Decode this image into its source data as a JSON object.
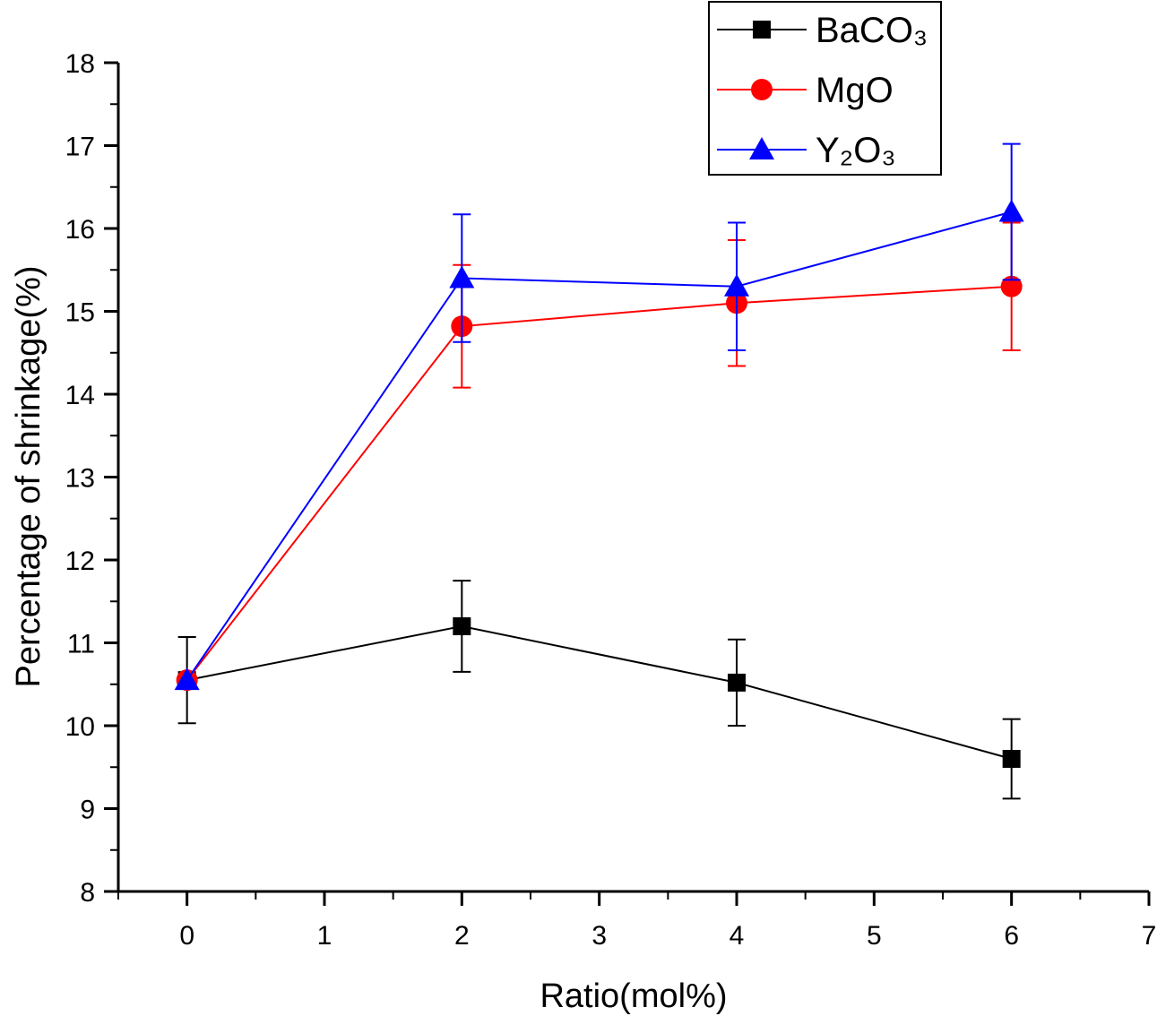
{
  "chart_data": {
    "type": "line",
    "title": "",
    "xlabel": "Ratio(mol%)",
    "ylabel": "Percentage of shrinkage(%)",
    "xlim": [
      -0.5,
      7
    ],
    "ylim": [
      8,
      18
    ],
    "xticks": [
      0,
      1,
      2,
      3,
      4,
      5,
      6,
      7
    ],
    "yticks": [
      8,
      9,
      10,
      11,
      12,
      13,
      14,
      15,
      16,
      17,
      18
    ],
    "grid": false,
    "legend_position": "top-right",
    "x": [
      0,
      2,
      4,
      6
    ],
    "series": [
      {
        "name": "BaCO₃",
        "color": "#000000",
        "marker": "square",
        "values": [
          10.55,
          11.2,
          10.52,
          9.6
        ],
        "errors": [
          0.52,
          0.55,
          0.52,
          0.48
        ]
      },
      {
        "name": "MgO",
        "color": "#ff0000",
        "marker": "circle",
        "values": [
          10.55,
          14.82,
          15.1,
          15.3
        ],
        "errors": [
          0,
          0.74,
          0.76,
          0.77
        ]
      },
      {
        "name": "Y₂O₃",
        "color": "#0000ff",
        "marker": "triangle",
        "values": [
          10.55,
          15.4,
          15.3,
          16.2
        ],
        "errors": [
          0,
          0.77,
          0.77,
          0.82
        ]
      }
    ]
  }
}
